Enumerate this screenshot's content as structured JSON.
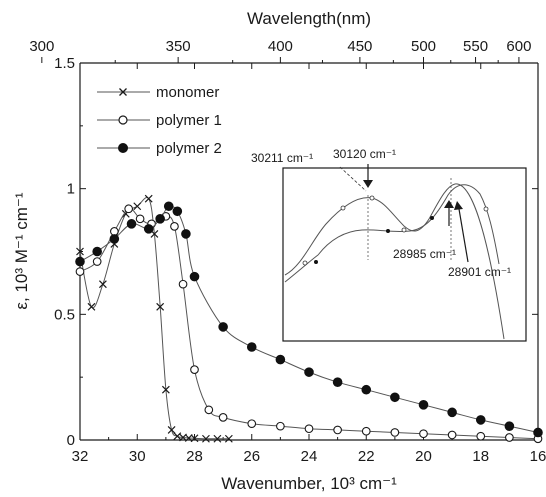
{
  "chart_data": {
    "type": "line",
    "xlabel": "Wavenumber, 10³ cm⁻¹",
    "x2label": "Wavelength(nm)",
    "ylabel": "ε, 10³ M⁻¹ cm⁻¹",
    "xlim": [
      32,
      16
    ],
    "ylim": [
      0,
      1.5
    ],
    "x_ticks": [
      32,
      30,
      28,
      26,
      24,
      22,
      20,
      18,
      16
    ],
    "y_ticks": [
      0,
      0.5,
      1,
      1.5
    ],
    "y_tick_labels": [
      "0",
      "0.5",
      "1",
      "1.5"
    ],
    "x2_ticks": [
      300,
      350,
      400,
      450,
      500,
      550,
      600
    ],
    "grid": false,
    "legend_position": "top-left",
    "series": [
      {
        "name": "monomer",
        "marker": "x",
        "x": [
          32.0,
          31.6,
          31.2,
          30.8,
          30.4,
          30.0,
          29.6,
          29.4,
          29.2,
          29.0,
          28.8,
          28.6,
          28.4,
          28.2,
          28.0,
          27.6,
          27.2,
          26.8
        ],
        "y": [
          0.75,
          0.53,
          0.62,
          0.78,
          0.9,
          0.93,
          0.96,
          0.82,
          0.53,
          0.2,
          0.04,
          0.015,
          0.01,
          0.008,
          0.007,
          0.005,
          0.005,
          0.005
        ]
      },
      {
        "name": "polymer 1",
        "marker": "open-circle",
        "x": [
          32.0,
          31.4,
          30.8,
          30.3,
          29.9,
          29.5,
          29.0,
          28.7,
          28.4,
          28.0,
          27.5,
          27.0,
          26.0,
          25.0,
          24.0,
          23.0,
          22.0,
          21.0,
          20.0,
          19.0,
          18.0,
          17.0,
          16.0
        ],
        "y": [
          0.67,
          0.71,
          0.83,
          0.92,
          0.88,
          0.86,
          0.89,
          0.85,
          0.62,
          0.28,
          0.12,
          0.09,
          0.065,
          0.055,
          0.045,
          0.04,
          0.035,
          0.03,
          0.025,
          0.02,
          0.015,
          0.01,
          0.005
        ]
      },
      {
        "name": "polymer 2",
        "marker": "filled-circle",
        "x": [
          32.0,
          31.4,
          30.8,
          30.2,
          29.6,
          29.2,
          28.9,
          28.6,
          28.3,
          28.0,
          27.0,
          26.0,
          25.0,
          24.0,
          23.0,
          22.0,
          21.0,
          20.0,
          19.0,
          18.0,
          17.0,
          16.0
        ],
        "y": [
          0.71,
          0.75,
          0.8,
          0.86,
          0.84,
          0.88,
          0.93,
          0.91,
          0.82,
          0.65,
          0.45,
          0.37,
          0.32,
          0.27,
          0.23,
          0.2,
          0.17,
          0.14,
          0.11,
          0.08,
          0.055,
          0.03
        ]
      }
    ],
    "inset": {
      "annotations": [
        "30211 cm⁻¹",
        "30120 cm⁻¹",
        "28985 cm⁻¹",
        "28901 cm⁻¹"
      ]
    }
  }
}
